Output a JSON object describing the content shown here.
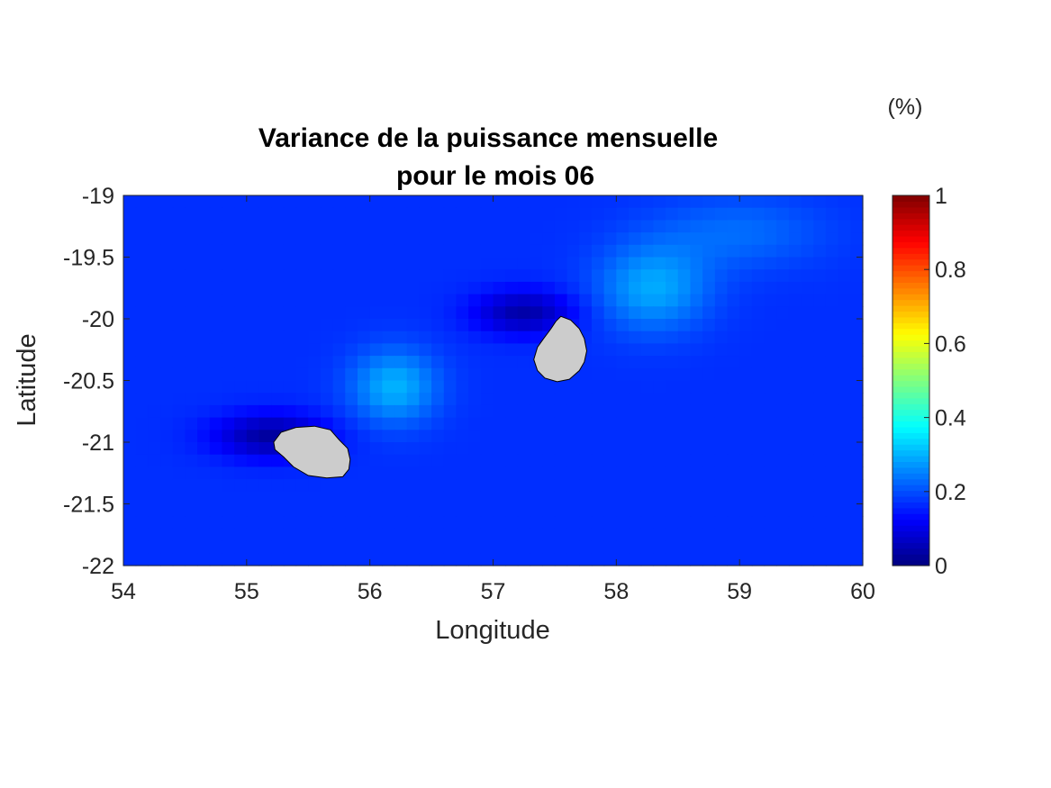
{
  "chart_data": {
    "type": "heatmap",
    "title": [
      "Variance de la puissance mensuelle",
      "pour le mois 06"
    ],
    "xlabel": "Longitude",
    "ylabel": "Latitude",
    "xlim": [
      54,
      60
    ],
    "ylim": [
      -22,
      -19
    ],
    "xticks": [
      "54",
      "55",
      "56",
      "57",
      "58",
      "59",
      "60"
    ],
    "yticks": [
      "-19",
      "-19.5",
      "-20",
      "-20.5",
      "-21",
      "-21.5",
      "-22"
    ],
    "grid": false,
    "colormap": "jet",
    "colorbar": {
      "range": [
        0,
        1
      ],
      "unit": "(%)",
      "ticks": [
        "0",
        "0.2",
        "0.4",
        "0.6",
        "0.8",
        "1"
      ]
    },
    "field": {
      "base": 0.17,
      "features": [
        {
          "type": "low",
          "lon": 55.2,
          "lat": -20.95,
          "sx": 0.45,
          "sy": 0.18,
          "amp": -0.14
        },
        {
          "type": "low",
          "lon": 57.25,
          "lat": -19.95,
          "sx": 0.4,
          "sy": 0.18,
          "amp": -0.13
        },
        {
          "type": "high",
          "lon": 56.2,
          "lat": -20.55,
          "sx": 0.35,
          "sy": 0.3,
          "amp": 0.13
        },
        {
          "type": "high",
          "lon": 58.3,
          "lat": -19.75,
          "sx": 0.45,
          "sy": 0.35,
          "amp": 0.12
        },
        {
          "type": "high",
          "lon": 59.0,
          "lat": -19.3,
          "sx": 0.7,
          "sy": 0.3,
          "amp": 0.06
        }
      ]
    },
    "land": [
      {
        "name": "Réunion",
        "color": "#cccccc",
        "outline": [
          [
            55.22,
            -21.0
          ],
          [
            55.28,
            -20.92
          ],
          [
            55.4,
            -20.88
          ],
          [
            55.55,
            -20.87
          ],
          [
            55.68,
            -20.9
          ],
          [
            55.75,
            -20.98
          ],
          [
            55.82,
            -21.05
          ],
          [
            55.84,
            -21.14
          ],
          [
            55.83,
            -21.22
          ],
          [
            55.78,
            -21.28
          ],
          [
            55.65,
            -21.29
          ],
          [
            55.5,
            -21.27
          ],
          [
            55.38,
            -21.2
          ],
          [
            55.3,
            -21.12
          ],
          [
            55.23,
            -21.06
          ]
        ]
      },
      {
        "name": "Maurice",
        "color": "#cccccc",
        "outline": [
          [
            57.55,
            -19.98
          ],
          [
            57.63,
            -20.01
          ],
          [
            57.7,
            -20.08
          ],
          [
            57.74,
            -20.16
          ],
          [
            57.76,
            -20.26
          ],
          [
            57.74,
            -20.35
          ],
          [
            57.7,
            -20.42
          ],
          [
            57.62,
            -20.49
          ],
          [
            57.52,
            -20.51
          ],
          [
            57.42,
            -20.48
          ],
          [
            57.36,
            -20.42
          ],
          [
            57.33,
            -20.33
          ],
          [
            57.36,
            -20.23
          ],
          [
            57.41,
            -20.16
          ],
          [
            57.47,
            -20.08
          ],
          [
            57.51,
            -20.02
          ]
        ]
      }
    ]
  }
}
